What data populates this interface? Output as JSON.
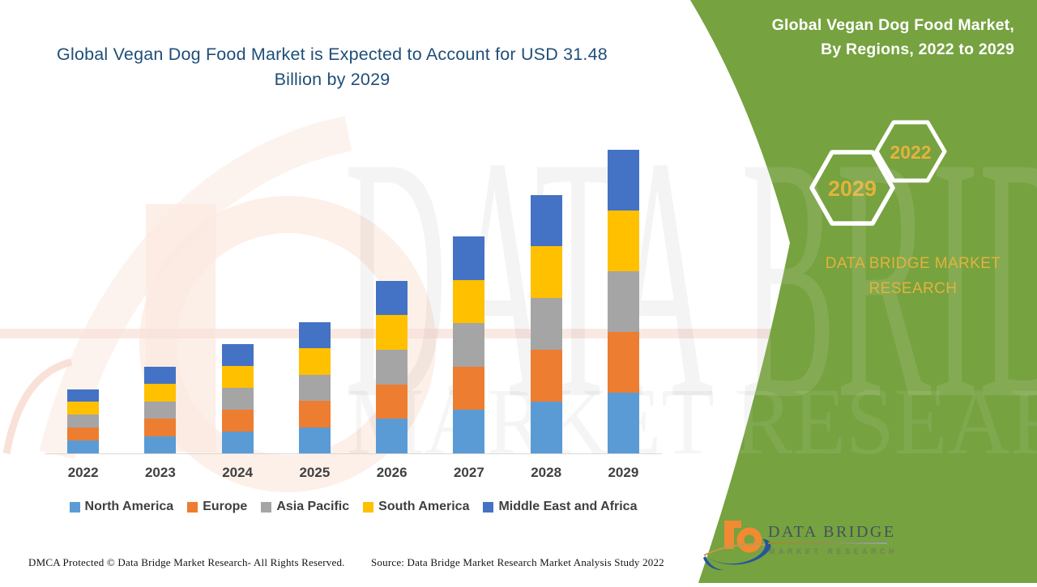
{
  "page_title": "Global Vegan Dog Food Market is Expected to Account for USD 31.48 Billion by 2029",
  "side_panel": {
    "title_line1": "Global Vegan Dog Food Market,",
    "title_line2": "By Regions, 2022 to 2029",
    "hexagons": [
      {
        "label": "2029"
      },
      {
        "label": "2022"
      }
    ],
    "brand_text": "DATA BRIDGE MARKET RESEARCH",
    "background_color": "#76A240",
    "accent_gold": "#E3B33C"
  },
  "watermark": {
    "line1": "DATA BRIDGE",
    "line2": "MARKET RESEARCH"
  },
  "logo": {
    "name": "DATA BRIDGE",
    "subtitle": "MARKET RESEARCH",
    "b_icon_orange": "#F18A33",
    "swoosh_navy": "#27549B"
  },
  "footer": {
    "left": "DMCA Protected © Data Bridge Market Research- All Rights Reserved.",
    "right": "Source: Data Bridge Market Research Market Analysis Study 2022"
  },
  "chart_data": {
    "type": "bar",
    "stacked": true,
    "title": "Global Vegan Dog Food Market, By Regions, 2022 to 2029",
    "unit": "USD Billion",
    "categories": [
      "2022",
      "2023",
      "2024",
      "2025",
      "2026",
      "2027",
      "2028",
      "2029"
    ],
    "series": [
      {
        "name": "North America",
        "color": "#5B9BD5",
        "values": [
          1.34,
          1.81,
          2.27,
          2.72,
          3.59,
          4.5,
          5.37,
          6.3
        ]
      },
      {
        "name": "Europe",
        "color": "#ED7D31",
        "values": [
          1.34,
          1.81,
          2.27,
          2.72,
          3.59,
          4.5,
          5.37,
          6.3
        ]
      },
      {
        "name": "Asia Pacific",
        "color": "#A5A5A5",
        "values": [
          1.34,
          1.81,
          2.27,
          2.72,
          3.59,
          4.5,
          5.37,
          6.3
        ]
      },
      {
        "name": "South America",
        "color": "#FFC000",
        "values": [
          1.34,
          1.81,
          2.27,
          2.72,
          3.59,
          4.5,
          5.37,
          6.3
        ]
      },
      {
        "name": "Middle East and Africa",
        "color": "#4472C4",
        "values": [
          1.34,
          1.81,
          2.27,
          2.72,
          3.59,
          4.5,
          5.37,
          6.3
        ]
      }
    ],
    "totals": [
      6.72,
      9.07,
      11.33,
      13.6,
      17.96,
      22.5,
      26.86,
      31.48
    ],
    "note": "Values estimated from bar heights; 2029 total stated as USD 31.48 billion in the headline. No y-axis is shown.",
    "legend_position": "bottom",
    "axis": {
      "y_visible": false,
      "x_labels": [
        "2022",
        "2023",
        "2024",
        "2025",
        "2026",
        "2027",
        "2028",
        "2029"
      ]
    }
  }
}
